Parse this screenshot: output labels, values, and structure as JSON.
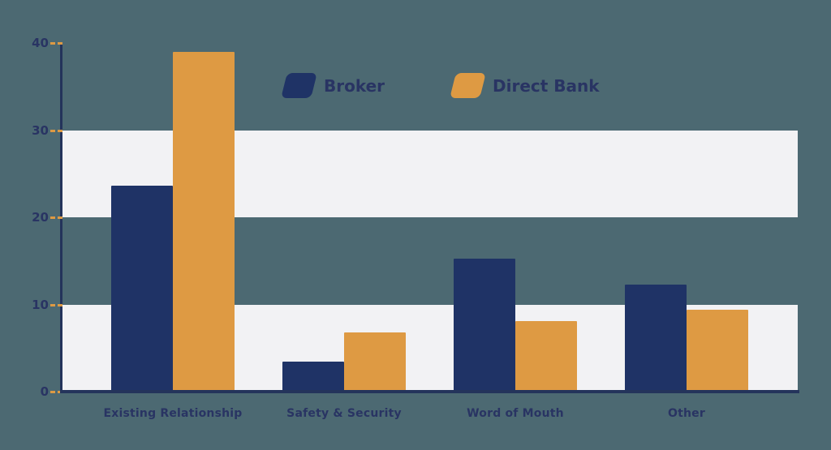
{
  "colors": {
    "page_background": "#4c6972",
    "stripe_band": "#f2f2f4",
    "broker_bar": "#1f3366",
    "direct_bank_bar": "#de9a43",
    "axis": "#24345b",
    "text": "#293463",
    "tick": "#dd9a44"
  },
  "legend": {
    "items": [
      {
        "label": "Broker",
        "color_key": "broker_bar"
      },
      {
        "label": "Direct Bank",
        "color_key": "direct_bank_bar"
      }
    ]
  },
  "chart_data": {
    "type": "bar",
    "title": "",
    "categories": [
      "Existing Relationship",
      "Safety & Security",
      "Word of Mouth",
      "Other"
    ],
    "series": [
      {
        "name": "Broker",
        "values": [
          23.6,
          3.4,
          15.3,
          12.3
        ]
      },
      {
        "name": "Direct Bank",
        "values": [
          39,
          6.8,
          8.1,
          9.4
        ]
      }
    ],
    "xlabel": "",
    "ylabel": "",
    "ylim": [
      0,
      40
    ],
    "yticks": [
      0,
      10,
      20,
      30,
      40
    ],
    "ytick_labels": [
      "0",
      "10",
      "20",
      "30",
      "40"
    ],
    "grid": "horizontal stripe bands covering y ranges 0-10 and 20-30",
    "stripe_bands": [
      [
        0,
        10
      ],
      [
        20,
        30
      ]
    ],
    "legend_position": "top-center"
  }
}
